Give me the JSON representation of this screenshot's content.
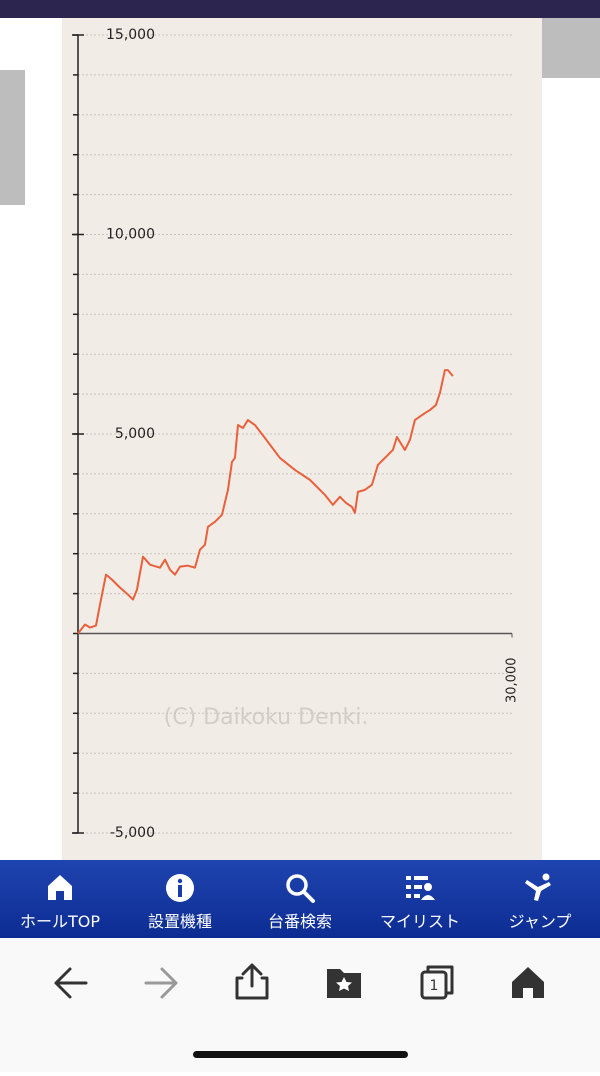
{
  "chart_data": {
    "type": "line",
    "watermark": "(C) Daikoku Denki.",
    "xlim": [
      0,
      30000
    ],
    "xticks": [
      {
        "value": 30000,
        "label": "30,000"
      }
    ],
    "ylim": [
      -5000,
      15000
    ],
    "yticks": [
      {
        "value": -5000,
        "label": "-5,000"
      },
      {
        "value": 5000,
        "label": "5,000"
      },
      {
        "value": 10000,
        "label": "10,000"
      },
      {
        "value": 15000,
        "label": "15,000"
      }
    ],
    "minor_tick_step": 1000,
    "grid": true,
    "series": [
      {
        "color": "#e8603c",
        "x": [
          0,
          484,
          829,
          1244,
          1520,
          1935,
          2350,
          2903,
          3456,
          3801,
          4078,
          4492,
          4976,
          5667,
          6013,
          6359,
          6704,
          7050,
          7601,
          8085,
          8430,
          8776,
          8983,
          9467,
          9951,
          10366,
          10642,
          10849,
          11057,
          11402,
          11748,
          12231,
          12922,
          13959,
          14995,
          16032,
          17068,
          17621,
          18105,
          18520,
          18934,
          19142,
          19349,
          19833,
          20317,
          20731,
          21215,
          21768,
          22045,
          22597,
          22943,
          23288,
          23979,
          24325,
          24740,
          25016,
          25362,
          25569,
          25915
        ],
        "values": [
          0,
          225,
          150,
          200,
          725,
          1475,
          1350,
          1150,
          975,
          850,
          1100,
          1925,
          1725,
          1650,
          1850,
          1600,
          1475,
          1675,
          1700,
          1650,
          2100,
          2225,
          2675,
          2800,
          2975,
          3600,
          4300,
          4400,
          5225,
          5150,
          5350,
          5225,
          4900,
          4400,
          4100,
          3850,
          3475,
          3225,
          3425,
          3275,
          3175,
          3025,
          3550,
          3600,
          3725,
          4225,
          4400,
          4600,
          4925,
          4600,
          4850,
          5350,
          5525,
          5600,
          5725,
          6025,
          6600,
          6600,
          6450
        ]
      }
    ]
  },
  "nav": {
    "items": [
      "ホールTOP",
      "設置機種",
      "台番検索",
      "マイリスト",
      "ジャンプ"
    ]
  }
}
